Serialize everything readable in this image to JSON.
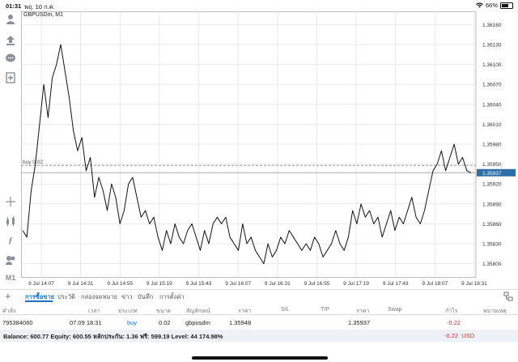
{
  "status_bar": {
    "time": "01:31",
    "date": "พฤ. 10 ก.ค.",
    "battery": "66%",
    "battery_level": 0.66
  },
  "chart": {
    "symbol_title": "GBPUSDm, M1",
    "position_line_label": "buy 0.02",
    "current_price": "1.35937",
    "price_levels": [
      "1.36160",
      "1.36130",
      "1.36100",
      "1.36070",
      "1.36040",
      "1.36010",
      "1.35980",
      "1.35950",
      "1.35920",
      "1.35890",
      "1.35860",
      "1.35830",
      "1.35800"
    ],
    "time_labels": [
      "9 Jul 14:07",
      "9 Jul 14:31",
      "9 Jul 14:55",
      "9 Jul 15:19",
      "9 Jul 15:43",
      "9 Jul 16:07",
      "9 Jul 16:31",
      "9 Jul 16:55",
      "9 Jul 17:19",
      "9 Jul 17:43",
      "9 Jul 18:07",
      "9 Jul 18:31"
    ],
    "colors": {
      "line": "#111111",
      "grid": "#e9e9e9",
      "position_line": "#9a9a9a",
      "price_tag_bg": "#2d6ea8"
    }
  },
  "toolbar": {
    "icons": [
      "crosshair-cursor-icon",
      "arrow-tool-icon",
      "chat-icon",
      "new-chart-icon",
      "crosshair-icon",
      "indicators-icon",
      "function-icon",
      "objects-icon"
    ],
    "timeframe": "M1"
  },
  "tabs": {
    "items": [
      "การซื้อขาย",
      "ประวัติ",
      "กล่องจดหมาย",
      "ข่าว",
      "บันทึก",
      "การตั้งค่า"
    ],
    "active_index": 0
  },
  "table": {
    "headers": [
      "คำสั่ง",
      "เวลา",
      "ประเภท",
      "ขนาด",
      "สัญลักษณ์",
      "ราคา",
      "S/L",
      "T/P",
      "ราคา",
      "Swap",
      "กำไร",
      "หมายเหตุ"
    ],
    "rows": [
      {
        "order": "795384060",
        "time": "07.09 18:31",
        "type": "buy",
        "size": "0.02",
        "symbol": "gbpusdm",
        "open_price": "1.35948",
        "sl": "",
        "tp": "",
        "price": "1.35937",
        "swap": "",
        "profit": "-0.22",
        "comment": ""
      }
    ]
  },
  "footer": {
    "balance_text": "Balance: 600.77 Equity: 600.55 หลักประกัน: 1.36 ฟรี: 599.19 Level: 44 174.98%",
    "total_profit": "-0.22",
    "currency": "USD"
  },
  "chart_data": {
    "type": "line",
    "x_labels": [
      "9 Jul 14:07",
      "9 Jul 14:31",
      "9 Jul 14:55",
      "9 Jul 15:19",
      "9 Jul 15:43",
      "9 Jul 16:07",
      "9 Jul 16:31",
      "9 Jul 16:55",
      "9 Jul 17:19",
      "9 Jul 17:43",
      "9 Jul 18:07",
      "9 Jul 18:31"
    ],
    "ylim": [
      1.3578,
      1.3618
    ],
    "position_line": 1.35948,
    "current_price": 1.35937,
    "series": [
      {
        "values": [
          1.3585,
          1.3584,
          1.3591,
          1.3595,
          1.3601,
          1.3607,
          1.3602,
          1.3608,
          1.361,
          1.3613,
          1.3609,
          1.3605,
          1.36,
          1.3597,
          1.3599,
          1.3594,
          1.3596,
          1.359,
          1.3593,
          1.3591,
          1.3588,
          1.3592,
          1.359,
          1.3586,
          1.3588,
          1.3592,
          1.3593,
          1.359,
          1.3587,
          1.3588,
          1.3586,
          1.3587,
          1.3584,
          1.3582,
          1.3585,
          1.3583,
          1.3586,
          1.3584,
          1.3583,
          1.3585,
          1.3586,
          1.3584,
          1.3582,
          1.3585,
          1.3583,
          1.3586,
          1.3587,
          1.3586,
          1.3587,
          1.3584,
          1.3583,
          1.3582,
          1.3586,
          1.3583,
          1.3584,
          1.3582,
          1.3581,
          1.358,
          1.3583,
          1.3581,
          1.3582,
          1.3584,
          1.3583,
          1.3585,
          1.3584,
          1.3583,
          1.3582,
          1.3583,
          1.3582,
          1.3584,
          1.3583,
          1.3581,
          1.3582,
          1.3583,
          1.3585,
          1.3583,
          1.3582,
          1.3584,
          1.3588,
          1.3586,
          1.3589,
          1.3587,
          1.3588,
          1.3586,
          1.3587,
          1.3584,
          1.3586,
          1.3588,
          1.3585,
          1.3587,
          1.3586,
          1.3588,
          1.359,
          1.3587,
          1.3586,
          1.3588,
          1.3591,
          1.3594,
          1.3595,
          1.3597,
          1.3594,
          1.3596,
          1.3598,
          1.3595,
          1.3596,
          1.3594,
          1.35937
        ]
      }
    ]
  }
}
